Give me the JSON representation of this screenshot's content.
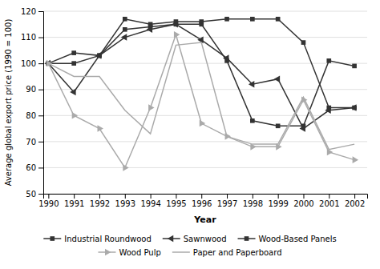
{
  "chart_data": {
    "type": "line",
    "x_label": "Year",
    "y_label": "Average global export price (1990 = 100)",
    "x": [
      1990,
      1991,
      1992,
      1993,
      1994,
      1995,
      1996,
      1997,
      1998,
      1999,
      2000,
      2001,
      2002
    ],
    "xlim": [
      1989.8,
      2002.5
    ],
    "xticks": [
      1990,
      1991,
      1992,
      1993,
      1994,
      1995,
      1996,
      1997,
      1998,
      1999,
      2000,
      2001,
      2002
    ],
    "ylim": [
      50,
      120
    ],
    "yticks": [
      50,
      60,
      70,
      80,
      90,
      100,
      110,
      120
    ],
    "grid": "y",
    "legend": "bottom",
    "series": [
      {
        "name": "Industrial Roundwood",
        "color": "#333333",
        "marker": "square",
        "values": [
          100,
          100,
          103,
          113,
          114,
          115,
          115,
          101,
          78,
          76,
          76,
          101,
          99
        ]
      },
      {
        "name": "Sawnwood",
        "color": "#333333",
        "marker": "triangle-left",
        "values": [
          100,
          89,
          103,
          110,
          113,
          115,
          109,
          102,
          92,
          94,
          75,
          82,
          83
        ]
      },
      {
        "name": "Wood-Based Panels",
        "color": "#333333",
        "marker": "square",
        "values": [
          100,
          104,
          103,
          117,
          115,
          116,
          116,
          117,
          117,
          117,
          108,
          83,
          83
        ]
      },
      {
        "name": "Wood Pulp",
        "color": "#aaaaaa",
        "marker": "triangle-right",
        "values": [
          100,
          80,
          75,
          60,
          83,
          111,
          77,
          72,
          68,
          68,
          86,
          66,
          63
        ]
      },
      {
        "name": "Paper and Paperboard",
        "color": "#aaaaaa",
        "marker": "none",
        "values": [
          100,
          95,
          95,
          82,
          73,
          107,
          108,
          72,
          69,
          69,
          87,
          67,
          69
        ]
      }
    ]
  }
}
